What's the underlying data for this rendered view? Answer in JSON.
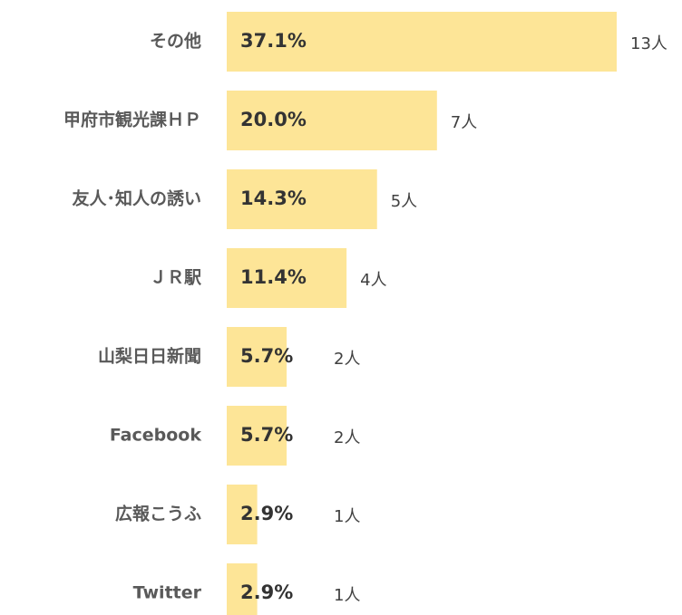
{
  "chart_data": {
    "type": "barh",
    "categories": [
      "その他",
      "甲府市観光課ＨＰ",
      "友人･知人の誘い",
      "ＪＲ駅",
      "山梨日日新聞",
      "Facebook",
      "広報こうふ",
      "Twitter"
    ],
    "values": [
      37.1,
      20.0,
      14.3,
      11.4,
      5.7,
      5.7,
      2.9,
      2.9
    ],
    "value_labels": [
      "37.1%",
      "20.0%",
      "14.3%",
      "11.4%",
      "5.7%",
      "5.7%",
      "2.9%",
      "2.9%"
    ],
    "counts": [
      13,
      7,
      5,
      4,
      2,
      2,
      1,
      1
    ],
    "count_labels": [
      "13人",
      "7人",
      "5人",
      "4人",
      "2人",
      "2人",
      "1人",
      "1人"
    ],
    "color": "#fde597"
  }
}
